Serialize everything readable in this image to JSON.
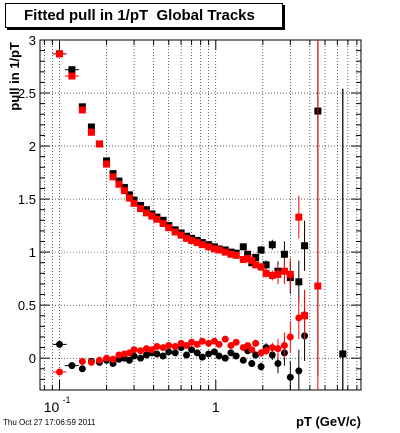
{
  "chart_data": {
    "type": "scatter",
    "title": "Fitted pull in 1/pT  Global Tracks",
    "xlabel": "pT (GeV/c)",
    "ylabel": "pull in 1/pT",
    "xscale": "log",
    "xlim": [
      0.075,
      8.5
    ],
    "ylim": [
      -0.3,
      3.0
    ],
    "y_ticks": [
      "0",
      "0.5",
      "1",
      "1.5",
      "2",
      "2.5",
      "3"
    ],
    "x_ticks": [
      {
        "value": 0.1,
        "base": "10",
        "exp": "-1"
      },
      {
        "value": 1,
        "base": "1",
        "exp": ""
      }
    ],
    "grid": true,
    "colors": {
      "series_black": "#000000",
      "series_red": "#ff0000",
      "axis": "#000000",
      "grid": "#000000"
    },
    "series": [
      {
        "marker": "square",
        "color": "#000000",
        "points": [
          [
            0.1,
            2.87
          ],
          [
            0.12,
            2.72
          ],
          [
            0.14,
            2.37
          ],
          [
            0.16,
            2.18
          ],
          [
            0.18,
            2.02
          ],
          [
            0.2,
            1.86
          ],
          [
            0.22,
            1.74
          ],
          [
            0.24,
            1.67
          ],
          [
            0.26,
            1.61
          ],
          [
            0.28,
            1.54
          ],
          [
            0.3,
            1.49
          ],
          [
            0.33,
            1.44
          ],
          [
            0.36,
            1.4
          ],
          [
            0.39,
            1.36
          ],
          [
            0.42,
            1.33
          ],
          [
            0.46,
            1.3
          ],
          [
            0.5,
            1.25
          ],
          [
            0.55,
            1.21
          ],
          [
            0.6,
            1.18
          ],
          [
            0.65,
            1.15
          ],
          [
            0.7,
            1.13
          ],
          [
            0.76,
            1.11
          ],
          [
            0.82,
            1.09
          ],
          [
            0.9,
            1.07
          ],
          [
            0.98,
            1.05
          ],
          [
            1.05,
            1.03
          ],
          [
            1.15,
            1.02
          ],
          [
            1.25,
            1.0
          ],
          [
            1.35,
            0.99
          ],
          [
            1.5,
            1.05
          ],
          [
            1.6,
            0.98
          ],
          [
            1.7,
            0.9
          ],
          [
            1.8,
            0.95
          ],
          [
            1.95,
            1.02
          ],
          [
            2.1,
            0.88
          ],
          [
            2.3,
            1.07
          ],
          [
            2.5,
            0.82
          ],
          [
            2.75,
            0.98
          ],
          [
            3.0,
            0.76
          ],
          [
            3.4,
            0.72
          ],
          [
            3.7,
            1.06
          ],
          [
            4.5,
            2.33
          ],
          [
            6.5,
            0.04
          ]
        ]
      },
      {
        "marker": "square",
        "color": "#ff0000",
        "points": [
          [
            0.1,
            2.87
          ],
          [
            0.12,
            2.66
          ],
          [
            0.14,
            2.34
          ],
          [
            0.16,
            2.13
          ],
          [
            0.18,
            2.02
          ],
          [
            0.2,
            1.83
          ],
          [
            0.22,
            1.71
          ],
          [
            0.24,
            1.64
          ],
          [
            0.26,
            1.58
          ],
          [
            0.28,
            1.51
          ],
          [
            0.3,
            1.46
          ],
          [
            0.33,
            1.41
          ],
          [
            0.36,
            1.37
          ],
          [
            0.39,
            1.34
          ],
          [
            0.42,
            1.31
          ],
          [
            0.46,
            1.27
          ],
          [
            0.5,
            1.23
          ],
          [
            0.55,
            1.19
          ],
          [
            0.6,
            1.16
          ],
          [
            0.65,
            1.13
          ],
          [
            0.7,
            1.11
          ],
          [
            0.76,
            1.09
          ],
          [
            0.82,
            1.07
          ],
          [
            0.9,
            1.05
          ],
          [
            0.98,
            1.03
          ],
          [
            1.05,
            1.02
          ],
          [
            1.15,
            1.0
          ],
          [
            1.25,
            0.98
          ],
          [
            1.35,
            0.97
          ],
          [
            1.5,
            0.93
          ],
          [
            1.6,
            0.94
          ],
          [
            1.7,
            0.92
          ],
          [
            1.8,
            0.88
          ],
          [
            1.95,
            0.86
          ],
          [
            2.1,
            0.8
          ],
          [
            2.3,
            0.78
          ],
          [
            2.5,
            0.79
          ],
          [
            2.75,
            0.82
          ],
          [
            3.0,
            0.79
          ],
          [
            3.4,
            1.33
          ],
          [
            3.7,
            0.4
          ],
          [
            4.5,
            0.68
          ]
        ]
      },
      {
        "marker": "circle",
        "color": "#000000",
        "points": [
          [
            0.1,
            0.13
          ],
          [
            0.12,
            -0.07
          ],
          [
            0.14,
            -0.1
          ],
          [
            0.16,
            -0.03
          ],
          [
            0.18,
            -0.04
          ],
          [
            0.2,
            -0.02
          ],
          [
            0.22,
            -0.05
          ],
          [
            0.24,
            -0.01
          ],
          [
            0.26,
            0.0
          ],
          [
            0.28,
            -0.02
          ],
          [
            0.3,
            0.02
          ],
          [
            0.33,
            0.0
          ],
          [
            0.36,
            0.03
          ],
          [
            0.39,
            0.05
          ],
          [
            0.42,
            0.04
          ],
          [
            0.46,
            0.02
          ],
          [
            0.5,
            0.06
          ],
          [
            0.55,
            0.05
          ],
          [
            0.6,
            0.1
          ],
          [
            0.65,
            0.03
          ],
          [
            0.7,
            0.08
          ],
          [
            0.76,
            0.05
          ],
          [
            0.82,
            0.01
          ],
          [
            0.9,
            0.04
          ],
          [
            0.98,
            0.06
          ],
          [
            1.05,
            0.02
          ],
          [
            1.15,
            0.0
          ],
          [
            1.25,
            0.05
          ],
          [
            1.35,
            0.02
          ],
          [
            1.5,
            -0.02
          ],
          [
            1.6,
            0.07
          ],
          [
            1.7,
            -0.05
          ],
          [
            1.8,
            0.03
          ],
          [
            1.95,
            -0.08
          ],
          [
            2.1,
            0.1
          ],
          [
            2.3,
            0.03
          ],
          [
            2.5,
            -0.05
          ],
          [
            2.75,
            0.05
          ],
          [
            3.0,
            -0.18
          ],
          [
            3.4,
            -0.12
          ],
          [
            3.7,
            0.21
          ],
          [
            6.5,
            0.04
          ]
        ]
      },
      {
        "marker": "circle",
        "color": "#ff0000",
        "points": [
          [
            0.1,
            -0.13
          ],
          [
            0.14,
            -0.03
          ],
          [
            0.16,
            -0.04
          ],
          [
            0.18,
            -0.02
          ],
          [
            0.2,
            0.0
          ],
          [
            0.22,
            -0.01
          ],
          [
            0.24,
            0.03
          ],
          [
            0.26,
            0.04
          ],
          [
            0.28,
            0.05
          ],
          [
            0.3,
            0.08
          ],
          [
            0.33,
            0.07
          ],
          [
            0.36,
            0.09
          ],
          [
            0.39,
            0.08
          ],
          [
            0.42,
            0.11
          ],
          [
            0.46,
            0.1
          ],
          [
            0.5,
            0.12
          ],
          [
            0.55,
            0.11
          ],
          [
            0.6,
            0.14
          ],
          [
            0.65,
            0.12
          ],
          [
            0.7,
            0.15
          ],
          [
            0.76,
            0.13
          ],
          [
            0.82,
            0.16
          ],
          [
            0.9,
            0.14
          ],
          [
            0.98,
            0.16
          ],
          [
            1.05,
            0.13
          ],
          [
            1.15,
            0.18
          ],
          [
            1.25,
            0.12
          ],
          [
            1.35,
            0.15
          ],
          [
            1.5,
            0.1
          ],
          [
            1.6,
            0.12
          ],
          [
            1.7,
            0.08
          ],
          [
            1.8,
            0.14
          ],
          [
            1.95,
            0.05
          ],
          [
            2.1,
            0.07
          ],
          [
            2.3,
            0.1
          ],
          [
            2.5,
            0.09
          ],
          [
            2.75,
            0.12
          ],
          [
            3.0,
            0.2
          ],
          [
            3.4,
            0.38
          ],
          [
            3.7,
            0.41
          ]
        ]
      }
    ]
  },
  "footer": {
    "timestamp": "Thu Oct 27 17:06:59 2011"
  }
}
